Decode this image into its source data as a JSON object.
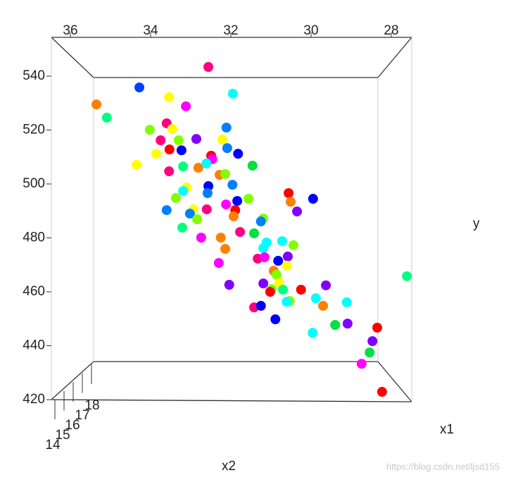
{
  "chart_data": {
    "type": "scatter3d",
    "x_label": "x1",
    "y_label": "y",
    "z_label": "x2",
    "xlim": [
      36,
      28
    ],
    "xticks": [
      36,
      34,
      32,
      30,
      28
    ],
    "ylim": [
      420,
      540
    ],
    "yticks": [
      540,
      520,
      500,
      480,
      460,
      440,
      420
    ],
    "zlim": [
      14,
      18
    ],
    "zticks": [
      14,
      15,
      16,
      17,
      18
    ],
    "x": [
      32.56,
      34.28,
      33.54,
      31.95,
      35.35,
      35.09,
      33.12,
      33.6,
      34.02,
      33.46,
      32.11,
      33.75,
      33.3,
      32.86,
      32.21,
      33.53,
      33.23,
      32.09,
      33.86,
      32.49,
      31.82,
      32.46,
      34.35,
      33.54,
      33.19,
      32.81,
      32.61,
      31.46,
      32.28,
      32.14,
      32.56,
      31.96,
      33.11,
      33.19,
      30.56,
      29.95,
      33.37,
      32.58,
      31.56,
      31.84,
      30.51,
      32.12,
      33.6,
      32.93,
      32.6,
      31.89,
      30.35,
      31.93,
      33.02,
      32.84,
      31.19,
      31.25,
      33.21,
      31.77,
      31.42,
      32.74,
      32.25,
      31.11,
      30.72,
      30.44,
      31.19,
      32.14,
      31.33,
      31.16,
      30.82,
      30.58,
      32.3,
      30.6,
      30.93,
      30.86,
      27.61,
      31.19,
      30.79,
      32.04,
      30.98,
      30.7,
      30.25,
      29.63,
      31.02,
      29.88,
      30.53,
      30.61,
      29.7,
      29.11,
      31.42,
      31.25,
      30.89,
      29.4,
      29.09,
      28.35,
      29.96,
      28.47,
      28.54,
      28.74,
      28.23
    ],
    "values": [
      543.4,
      535.8,
      532.2,
      533.5,
      529.5,
      524.6,
      528.8,
      522.5,
      520.1,
      520.4,
      520.9,
      516.2,
      516.2,
      516.7,
      516.5,
      512.8,
      512.5,
      513.3,
      511.2,
      510.5,
      511.2,
      509.2,
      507.1,
      504.7,
      506.5,
      506.0,
      507.6,
      506.8,
      503.4,
      503.7,
      499.2,
      499.7,
      498.7,
      497.4,
      496.6,
      494.5,
      494.8,
      496.6,
      494.5,
      493.7,
      493.4,
      492.4,
      490.3,
      490.6,
      490.6,
      490.3,
      489.8,
      488.0,
      489.0,
      486.9,
      487.2,
      486.1,
      483.8,
      482.2,
      481.7,
      480.1,
      480.1,
      478.3,
      478.8,
      477.3,
      476.2,
      475.9,
      472.3,
      472.8,
      471.5,
      473.1,
      470.7,
      469.7,
      467.8,
      466.3,
      465.8,
      463.1,
      463.4,
      462.6,
      461.0,
      460.8,
      460.8,
      462.4,
      460.0,
      457.6,
      456.6,
      456.3,
      454.8,
      456.1,
      454.2,
      454.8,
      449.8,
      447.7,
      448.2,
      446.7,
      444.8,
      441.7,
      437.5,
      433.3,
      422.9
    ],
    "colors": [
      "#ff0080",
      "#0040ff",
      "#ffff00",
      "#00ffff",
      "#ff8000",
      "#00ff80",
      "#ff00ff",
      "#ff0080",
      "#80ff00",
      "#ffff00",
      "#0080ff",
      "#ff0080",
      "#80ff00",
      "#8000ff",
      "#ffff00",
      "#ff0000",
      "#0000ff",
      "#0080ff",
      "#ffff00",
      "#ff0000",
      "#0000ff",
      "#ff00ff",
      "#ffff00",
      "#ff0080",
      "#00ff80",
      "#ff8000",
      "#00ffff",
      "#00e040",
      "#ff8000",
      "#80ff00",
      "#0000ff",
      "#0080ff",
      "#ffff00",
      "#00ffff",
      "#ff0000",
      "#0000ff",
      "#80ff00",
      "#0080ff",
      "#80ff00",
      "#0000ff",
      "#ff8000",
      "#ff00ff",
      "#0080ff",
      "#ffff00",
      "#ff0080",
      "#ff0000",
      "#8000ff",
      "#ff8000",
      "#0080ff",
      "#80ff00",
      "#80ff00",
      "#0080ff",
      "#00ff80",
      "#ff0080",
      "#00e040",
      "#ff00ff",
      "#ff8000",
      "#00ffff",
      "#00ffff",
      "#80ff00",
      "#00ffff",
      "#ff8000",
      "#ff0080",
      "#ff00ff",
      "#0000ff",
      "#8000ff",
      "#ff00ff",
      "#ffff00",
      "#ff8000",
      "#80ff00",
      "#00ff80",
      "#8000ff",
      "#ffff00",
      "#8000ff",
      "#80ff00",
      "#00ff80",
      "#ff0000",
      "#8000ff",
      "#ff0000",
      "#00ffff",
      "#80ff00",
      "#00ffff",
      "#ff8000",
      "#00ffff",
      "#ff0080",
      "#0000ff",
      "#0000ff",
      "#00e040",
      "#8000ff",
      "#ff0000",
      "#00ffff",
      "#8000ff",
      "#00e040",
      "#ff00ff",
      "#ff0000"
    ]
  },
  "watermark": "https://blog.csdn.net/ljsd155"
}
